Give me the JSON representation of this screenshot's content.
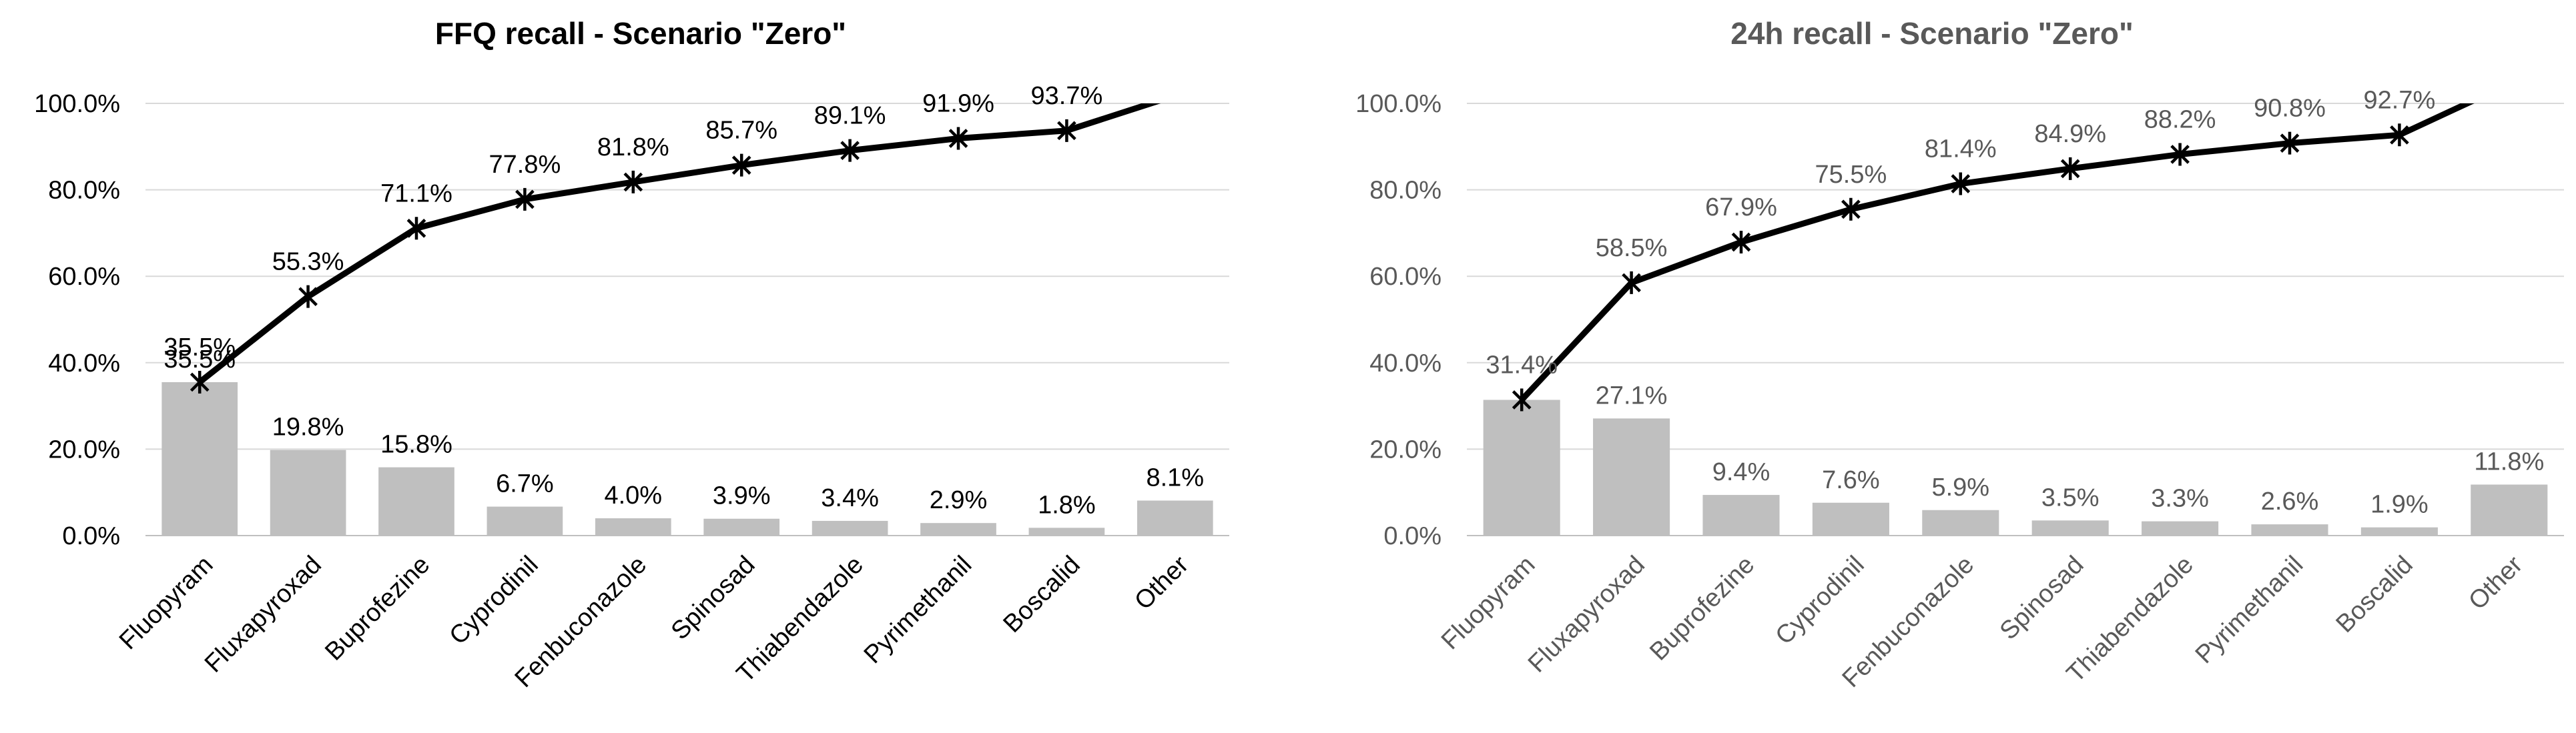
{
  "colors": {
    "bar": "#bfbfbf",
    "line": "#000000",
    "grid": "#d9d9d9",
    "axis": "#bfbfbf",
    "text_dark": "#000000",
    "text_gray": "#595959"
  },
  "chart_data": [
    {
      "type": "bar",
      "title": "FFQ recall - Scenario \"Zero\"",
      "xlabel": "",
      "ylabel": "",
      "ylim": [
        0,
        100
      ],
      "yticks": [
        "0.0%",
        "20.0%",
        "40.0%",
        "60.0%",
        "80.0%",
        "100.0%"
      ],
      "grid": true,
      "legend": "none",
      "categories": [
        "Fluopyram",
        "Fluxapyroxad",
        "Buprofezine",
        "Cyprodinil",
        "Fenbuconazole",
        "Spinosad",
        "Thiabendazole",
        "Pyrimethanil",
        "Boscalid",
        "Other"
      ],
      "series": [
        {
          "type": "bar",
          "values": [
            35.5,
            19.8,
            15.8,
            6.7,
            4.0,
            3.9,
            3.4,
            2.9,
            1.8,
            8.1
          ],
          "labels": [
            "35.5%",
            "19.8%",
            "15.8%",
            "6.7%",
            "4.0%",
            "3.9%",
            "3.4%",
            "2.9%",
            "1.8%",
            "8.1%"
          ]
        },
        {
          "type": "line",
          "marker": "asterisk",
          "values": [
            35.5,
            55.3,
            71.1,
            77.8,
            81.8,
            85.7,
            89.1,
            91.9,
            93.7,
            101.8
          ],
          "labels": [
            "35.5%",
            "55.3%",
            "71.1%",
            "77.8%",
            "81.8%",
            "85.7%",
            "89.1%",
            "91.9%",
            "93.7%",
            ""
          ]
        }
      ]
    },
    {
      "type": "bar",
      "title": "24h recall - Scenario \"Zero\"",
      "xlabel": "",
      "ylabel": "",
      "ylim": [
        0,
        100
      ],
      "yticks": [
        "0.0%",
        "20.0%",
        "40.0%",
        "60.0%",
        "80.0%",
        "100.0%"
      ],
      "grid": true,
      "legend": "none",
      "categories": [
        "Fluopyram",
        "Fluxapyroxad",
        "Buprofezine",
        "Cyprodinil",
        "Fenbuconazole",
        "Spinosad",
        "Thiabendazole",
        "Pyrimethanil",
        "Boscalid",
        "Other"
      ],
      "series": [
        {
          "type": "bar",
          "values": [
            31.4,
            27.1,
            9.4,
            7.6,
            5.9,
            3.5,
            3.3,
            2.6,
            1.9,
            11.8
          ],
          "labels": [
            "",
            "27.1%",
            "9.4%",
            "7.6%",
            "5.9%",
            "3.5%",
            "3.3%",
            "2.6%",
            "1.9%",
            "11.8%"
          ]
        },
        {
          "type": "line",
          "marker": "asterisk",
          "values": [
            31.4,
            58.5,
            67.9,
            75.5,
            81.4,
            84.9,
            88.2,
            90.8,
            92.7,
            104.5
          ],
          "labels": [
            "31.4%",
            "58.5%",
            "67.9%",
            "75.5%",
            "81.4%",
            "84.9%",
            "88.2%",
            "90.8%",
            "92.7%",
            ""
          ]
        }
      ]
    }
  ]
}
